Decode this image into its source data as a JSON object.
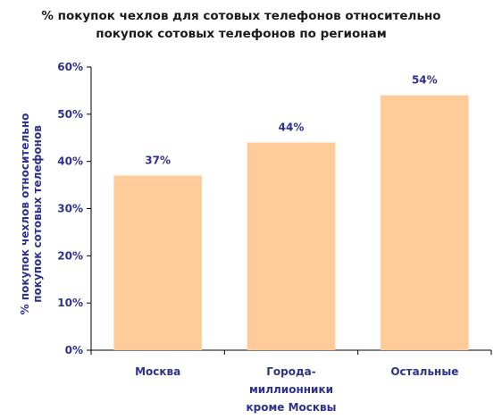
{
  "chart_data": {
    "type": "bar",
    "title": "% покупок чехлов для сотовых телефонов относительно покупок сотовых телефонов по регионам",
    "title_lines": [
      "% покупок чехлов для сотовых телефонов относительно",
      "покупок сотовых телефонов по регионам"
    ],
    "ylabel": "% покупок чехлов относительно покупок сотовых телефонов",
    "ylabel_lines": [
      "% покупок чехлов относительно",
      "покупок сотовых телефонов"
    ],
    "xlabel": "",
    "categories": [
      "Москва",
      "Города-миллионники кроме Москвы",
      "Остальные"
    ],
    "category_label_lines": [
      [
        "Москва"
      ],
      [
        "Города-",
        "миллионники",
        "кроме Москвы"
      ],
      [
        "Остальные"
      ]
    ],
    "values": [
      37,
      44,
      54
    ],
    "data_labels": [
      "37%",
      "44%",
      "54%"
    ],
    "ylim": [
      0,
      60
    ],
    "yticks": [
      0,
      10,
      20,
      30,
      40,
      50,
      60
    ],
    "ytick_labels": [
      "0%",
      "10%",
      "20%",
      "30%",
      "40%",
      "50%",
      "60%"
    ],
    "grid": false,
    "legend": "none",
    "colors": {
      "bar": "#ffcc99",
      "text": "#2e3192",
      "axis": "#000000",
      "title": "#1a1a1a"
    }
  }
}
